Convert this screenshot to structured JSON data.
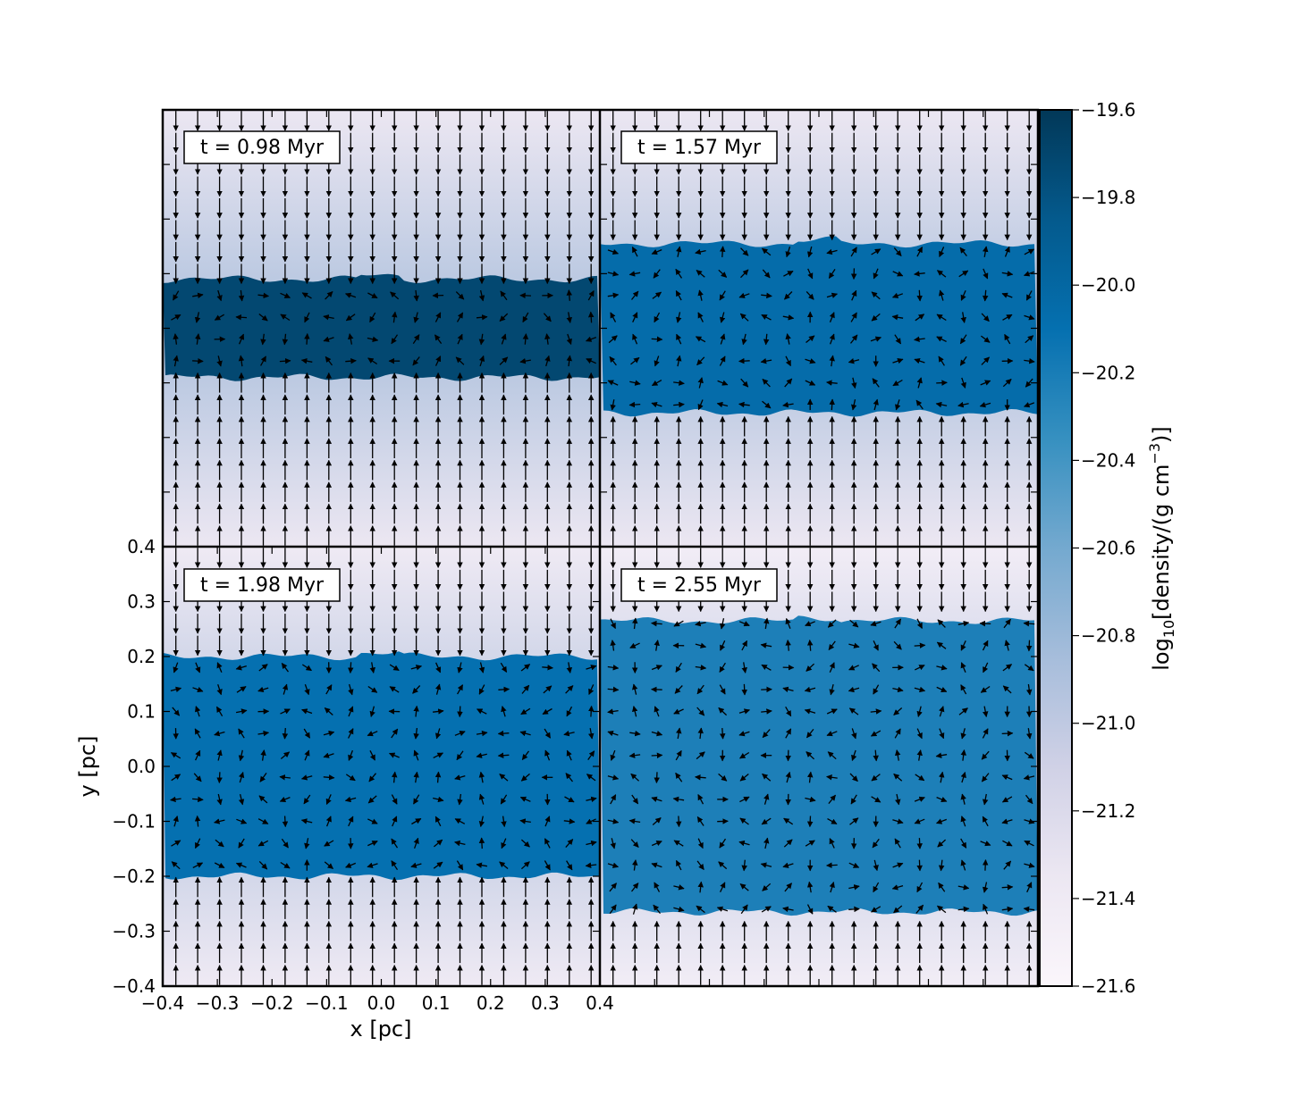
{
  "chart_data": {
    "type": "heatmap",
    "xlabel": "x [pc]",
    "ylabel": "y [pc]",
    "xlim": [
      -0.4,
      0.4
    ],
    "ylim": [
      -0.4,
      0.4
    ],
    "x_ticks": [
      "−0.4",
      "−0.3",
      "−0.2",
      "−0.1",
      "0.0",
      "0.1",
      "0.2",
      "0.3",
      "0.4"
    ],
    "y_ticks": [
      "−0.4",
      "−0.3",
      "−0.2",
      "−0.1",
      "0.0",
      "0.1",
      "0.2",
      "0.3",
      "0.4"
    ],
    "colorbar": {
      "label_main": "log",
      "label_sub": "10",
      "label_mid": "[density/(g cm",
      "label_sup": "−3",
      "label_end": ")]",
      "range": [
        -21.6,
        -19.6
      ],
      "ticks": [
        "−19.6",
        "−19.8",
        "−20.0",
        "−20.2",
        "−20.4",
        "−20.6",
        "−20.8",
        "−21.0",
        "−21.2",
        "−21.4",
        "−21.6"
      ],
      "colors": [
        "#fbf6fb",
        "#ece7f2",
        "#d0d1e6",
        "#a6bddb",
        "#74a9cf",
        "#3690c0",
        "#0570b0",
        "#045a8d",
        "#023858"
      ]
    },
    "panels": [
      {
        "label": "t = 0.98 Myr",
        "time_myr": 0.98,
        "slab_half_width_pc": 0.09,
        "slab_log_density": -19.72,
        "ambient_log_density": -21.35
      },
      {
        "label": "t = 1.57 Myr",
        "time_myr": 1.57,
        "slab_half_width_pc": 0.155,
        "slab_log_density": -20.06,
        "ambient_log_density": -21.35
      },
      {
        "label": "t = 1.98 Myr",
        "time_myr": 1.98,
        "slab_half_width_pc": 0.2,
        "slab_log_density": -20.1,
        "ambient_log_density": -21.4
      },
      {
        "label": "t = 2.55 Myr",
        "time_myr": 2.55,
        "slab_half_width_pc": 0.265,
        "slab_log_density": -20.22,
        "ambient_log_density": -21.45
      }
    ]
  }
}
